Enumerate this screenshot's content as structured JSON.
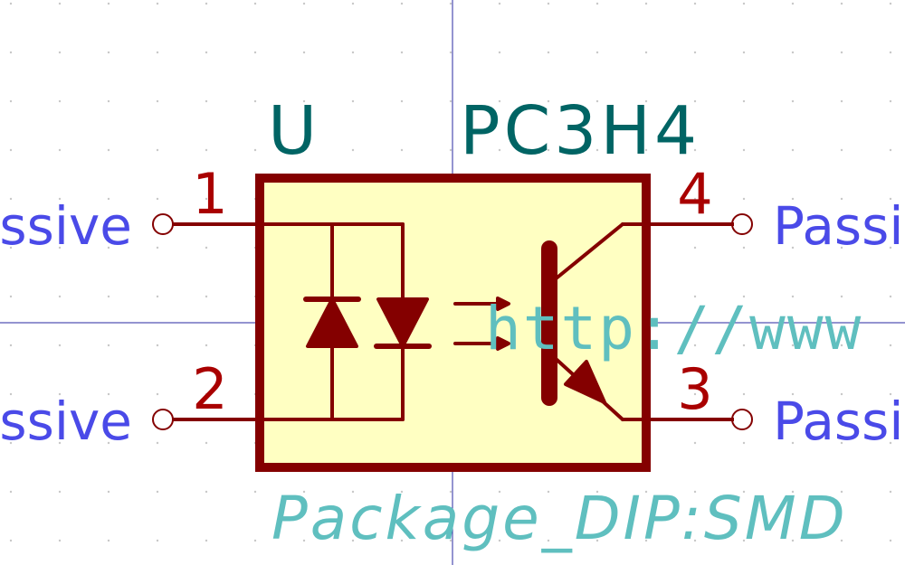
{
  "symbol": {
    "reference": "U",
    "value": "PC3H4",
    "url_text": "http://www",
    "footprint_text": "Package_DIP:SMD",
    "pins": [
      {
        "number": "1",
        "type": "Passive",
        "side": "left"
      },
      {
        "number": "2",
        "type": "Passive",
        "side": "left"
      },
      {
        "number": "4",
        "type": "Passive",
        "side": "right"
      },
      {
        "number": "3",
        "type": "Passive",
        "side": "right"
      }
    ]
  },
  "colors": {
    "body_fill": "#ffffc2",
    "body_stroke": "#840000",
    "pin_number": "#a90000",
    "pin_type": "#4a4ae8",
    "field_text": "#006464",
    "hidden_field": "#5fbfbf",
    "crosshair": "#2a2aa0",
    "grid_dot": "#c8c8c8"
  }
}
